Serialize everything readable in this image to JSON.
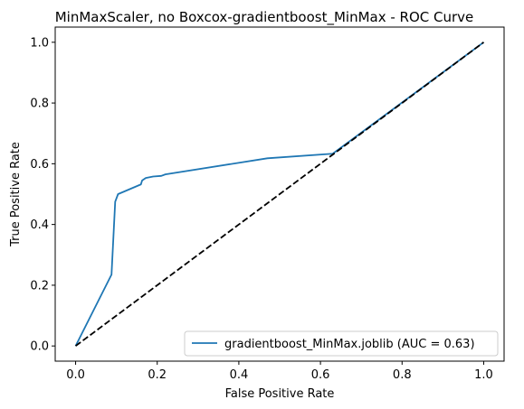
{
  "chart_data": {
    "type": "line",
    "title": "MinMaxScaler, no Boxcox-gradientboost_MinMax - ROC Curve",
    "xlabel": "False Positive Rate",
    "ylabel": "True Positive Rate",
    "xlim": [
      -0.05,
      1.05
    ],
    "ylim": [
      -0.05,
      1.05
    ],
    "xticks": [
      "0.0",
      "0.2",
      "0.4",
      "0.6",
      "0.8",
      "1.0"
    ],
    "yticks": [
      "0.0",
      "0.2",
      "0.4",
      "0.6",
      "0.8",
      "1.0"
    ],
    "grid": false,
    "legend_position": "lower-right",
    "series": [
      {
        "name": "gradientboost_MinMax.joblib (AUC = 0.63)",
        "color": "#1f77b4",
        "style": "solid",
        "x": [
          0.0,
          0.088,
          0.097,
          0.104,
          0.16,
          0.163,
          0.172,
          0.19,
          0.21,
          0.22,
          0.47,
          0.63,
          1.0
        ],
        "y": [
          0.0,
          0.235,
          0.475,
          0.5,
          0.532,
          0.545,
          0.553,
          0.558,
          0.56,
          0.565,
          0.618,
          0.633,
          1.0
        ]
      },
      {
        "name": "",
        "color": "#000000",
        "style": "dashed",
        "x": [
          0.0,
          1.0
        ],
        "y": [
          0.0,
          1.0
        ]
      }
    ]
  }
}
